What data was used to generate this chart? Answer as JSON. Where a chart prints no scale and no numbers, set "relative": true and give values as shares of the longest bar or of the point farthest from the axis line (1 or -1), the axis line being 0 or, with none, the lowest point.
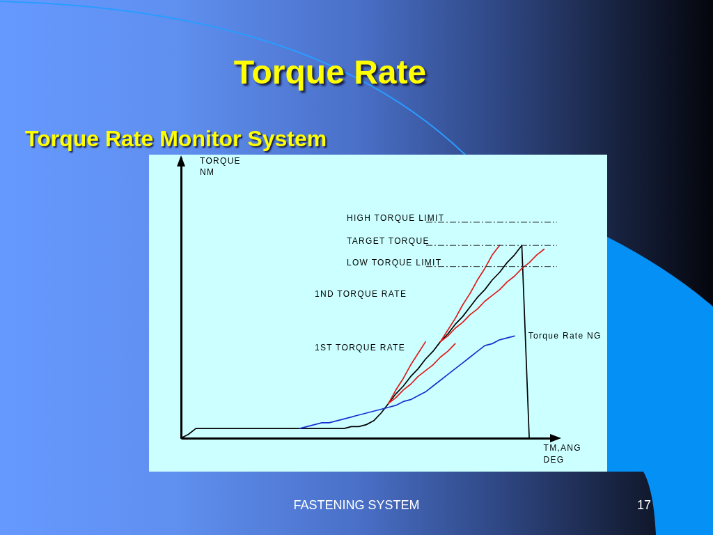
{
  "chart_data": {
    "type": "line",
    "title": "Torque Rate",
    "subtitle": "Torque Rate Monitor System",
    "xlabel": "TM,ANG DEG",
    "relative": true,
    "categories": [
      null,
      null,
      null,
      null,
      null,
      null,
      null,
      null,
      null,
      null,
      null,
      null,
      null,
      null,
      null,
      null,
      null,
      null,
      null,
      null,
      null,
      null,
      null,
      null,
      null,
      null,
      null,
      null,
      null,
      null,
      null,
      null,
      null,
      null,
      null,
      null,
      null,
      null,
      null,
      null,
      null,
      null,
      null,
      null,
      null,
      null,
      null,
      null,
      null,
      null,
      null
    ],
    "series": [
      {
        "color": "#000000",
        "values": [
          0,
          0.02,
          0.05,
          0.05,
          0.05,
          0.05,
          0.05,
          0.05,
          0.05,
          0.05,
          0.05,
          0.05,
          0.05,
          0.05,
          0.05,
          0.05,
          0.05,
          0.05,
          0.05,
          0.05,
          0.05,
          0.05,
          0.05,
          0.06,
          0.06,
          0.07,
          0.09,
          0.13,
          0.18,
          0.23,
          0.27,
          0.32,
          0.36,
          0.41,
          0.45,
          0.5,
          0.54,
          0.59,
          0.63,
          0.68,
          0.73,
          0.77,
          0.82,
          0.86,
          0.91,
          0.95,
          1,
          0,
          null,
          null,
          null
        ]
      },
      {
        "name": "Torque Rate NG",
        "color": "#1a2fd0",
        "values": [
          null,
          null,
          null,
          null,
          null,
          null,
          null,
          null,
          null,
          null,
          null,
          null,
          null,
          null,
          null,
          null,
          0.05,
          0.06,
          0.07,
          0.08,
          0.08,
          0.09,
          0.1,
          0.11,
          0.12,
          0.13,
          0.14,
          0.15,
          0.16,
          0.17,
          0.19,
          0.2,
          0.22,
          0.24,
          0.27,
          0.3,
          0.33,
          0.36,
          0.39,
          0.42,
          0.45,
          0.48,
          0.49,
          0.51,
          0.52,
          0.53,
          null,
          null,
          null,
          null,
          null
        ]
      },
      {
        "color": "#e01818",
        "values": [
          null,
          null,
          null,
          null,
          null,
          null,
          null,
          null,
          null,
          null,
          null,
          null,
          null,
          null,
          null,
          null,
          null,
          null,
          null,
          null,
          null,
          null,
          null,
          null,
          null,
          null,
          null,
          null,
          0.18,
          0.25,
          0.31,
          0.38,
          0.44,
          0.5,
          null,
          null,
          null,
          null,
          null,
          null,
          null,
          null,
          null,
          null,
          null,
          null,
          null,
          null,
          null,
          null,
          null
        ]
      },
      {
        "color": "#e01818",
        "values": [
          null,
          null,
          null,
          null,
          null,
          null,
          null,
          null,
          null,
          null,
          null,
          null,
          null,
          null,
          null,
          null,
          null,
          null,
          null,
          null,
          null,
          null,
          null,
          null,
          null,
          null,
          null,
          null,
          0.18,
          0.21,
          0.25,
          0.28,
          0.32,
          0.35,
          0.38,
          0.42,
          0.45,
          0.49,
          null,
          null,
          null,
          null,
          null,
          null,
          null,
          null,
          null,
          null,
          null,
          null,
          null
        ]
      },
      {
        "color": "#e01818",
        "values": [
          null,
          null,
          null,
          null,
          null,
          null,
          null,
          null,
          null,
          null,
          null,
          null,
          null,
          null,
          null,
          null,
          null,
          null,
          null,
          null,
          null,
          null,
          null,
          null,
          null,
          null,
          null,
          null,
          null,
          null,
          null,
          null,
          null,
          null,
          null,
          0.5,
          0.56,
          0.62,
          0.69,
          0.75,
          0.82,
          0.88,
          0.95,
          1,
          null,
          null,
          null,
          null,
          null,
          null,
          null
        ]
      },
      {
        "color": "#e01818",
        "values": [
          null,
          null,
          null,
          null,
          null,
          null,
          null,
          null,
          null,
          null,
          null,
          null,
          null,
          null,
          null,
          null,
          null,
          null,
          null,
          null,
          null,
          null,
          null,
          null,
          null,
          null,
          null,
          null,
          null,
          null,
          null,
          null,
          null,
          null,
          null,
          0.5,
          0.53,
          0.57,
          0.6,
          0.64,
          0.67,
          0.71,
          0.74,
          0.77,
          0.81,
          0.84,
          0.88,
          0.91,
          0.95,
          0.98,
          null
        ]
      }
    ],
    "ref_lines": [
      {
        "axis": "y",
        "value": 1.12,
        "label": "HIGH TORQUE LIMIT",
        "line_style": "dashed",
        "color": "#333333"
      },
      {
        "axis": "y",
        "value": 1,
        "label": "TARGET TORQUE",
        "line_style": "dashed",
        "color": "#333333"
      },
      {
        "axis": "y",
        "value": 0.89,
        "label": "LOW TORQUE LIMIT",
        "line_style": "dashed",
        "color": "#333333"
      }
    ],
    "annotations": [
      "TORQUE NM",
      "1ND TORQUE RATE",
      "1ST TORQUE RATE",
      "FASTENING SYSTEM",
      "17"
    ]
  }
}
